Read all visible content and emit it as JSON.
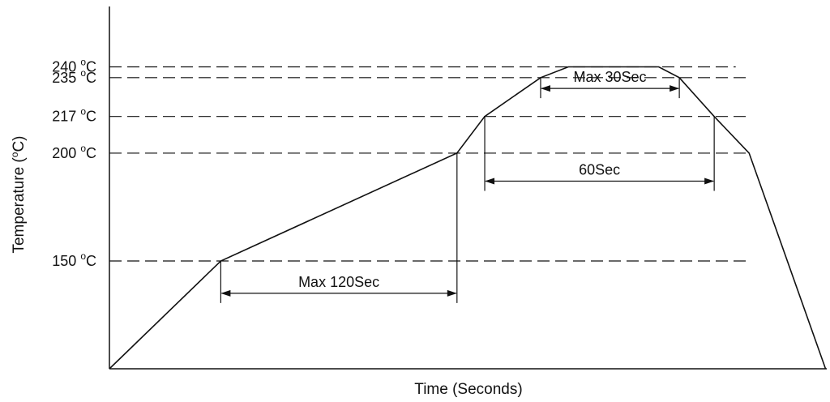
{
  "chart_data": {
    "type": "line",
    "title": "",
    "xlabel": "Time (Seconds)",
    "ylabel_main": "Temperature (",
    "ylabel_sup": "o",
    "ylabel_tail": "C)",
    "ylabel": "Temperature (°C)",
    "y_ticks": [
      {
        "value": 240,
        "label": "240 ",
        "unit_sup": "o",
        "unit": "C"
      },
      {
        "value": 235,
        "label": "235 ",
        "unit_sup": "o",
        "unit": "C"
      },
      {
        "value": 217,
        "label": "217 ",
        "unit_sup": "o",
        "unit": "C"
      },
      {
        "value": 200,
        "label": "200 ",
        "unit_sup": "o",
        "unit": "C"
      },
      {
        "value": 150,
        "label": "150 ",
        "unit_sup": "o",
        "unit": "C"
      }
    ],
    "profile": {
      "name": "",
      "points": [
        {
          "x": 0,
          "y": 100
        },
        {
          "x": 28.1,
          "y": 150
        },
        {
          "x": 87.7,
          "y": 200
        },
        {
          "x": 94.7,
          "y": 217
        },
        {
          "x": 108.8,
          "y": 235
        },
        {
          "x": 115.8,
          "y": 240
        },
        {
          "x": 138.6,
          "y": 240
        },
        {
          "x": 143.8,
          "y": 235
        },
        {
          "x": 152.6,
          "y": 217
        },
        {
          "x": 161.4,
          "y": 200
        },
        {
          "x": 180.7,
          "y": 100
        }
      ]
    },
    "annotations": [
      {
        "text": "Max 120Sec",
        "from_x": 28.1,
        "to_x": 87.7,
        "at_y": 135
      },
      {
        "text": "Max 30Sec",
        "from_x": 108.8,
        "to_x": 143.8,
        "at_y": 230
      },
      {
        "text": "60Sec",
        "from_x": 94.7,
        "to_x": 152.6,
        "at_y": 187
      }
    ],
    "xlim": [
      0,
      181
    ],
    "ylim": [
      100,
      268
    ],
    "grid": false,
    "legend": "none"
  }
}
